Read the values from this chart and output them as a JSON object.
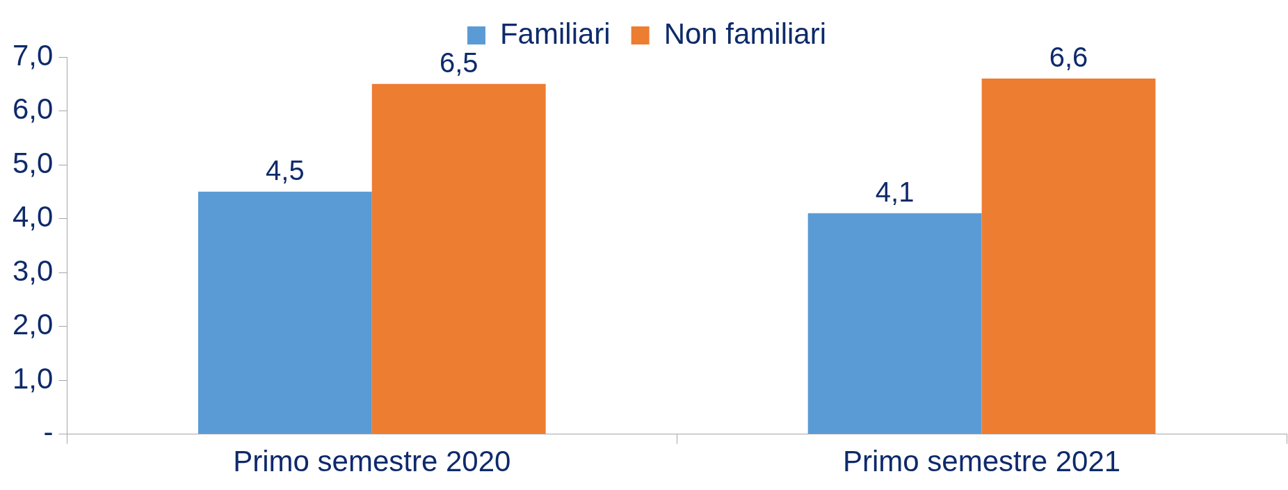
{
  "chart_data": {
    "type": "bar",
    "categories": [
      "Primo semestre 2020",
      "Primo semestre 2021"
    ],
    "series": [
      {
        "name": "Familiari",
        "color": "#5b9bd5",
        "values": [
          4.5,
          4.1
        ],
        "value_labels": [
          "4,5",
          "4,1"
        ]
      },
      {
        "name": "Non familiari",
        "color": "#ed7d31",
        "values": [
          6.5,
          6.6
        ],
        "value_labels": [
          "6,5",
          "6,6"
        ]
      }
    ],
    "ylim": [
      0,
      7
    ],
    "yticks": [
      {
        "value": 0,
        "label": "-"
      },
      {
        "value": 1,
        "label": "1,0"
      },
      {
        "value": 2,
        "label": "2,0"
      },
      {
        "value": 3,
        "label": "3,0"
      },
      {
        "value": 4,
        "label": "4,0"
      },
      {
        "value": 5,
        "label": "5,0"
      },
      {
        "value": 6,
        "label": "6,0"
      },
      {
        "value": 7,
        "label": "7,0"
      }
    ],
    "grid": false,
    "legend": "top"
  }
}
